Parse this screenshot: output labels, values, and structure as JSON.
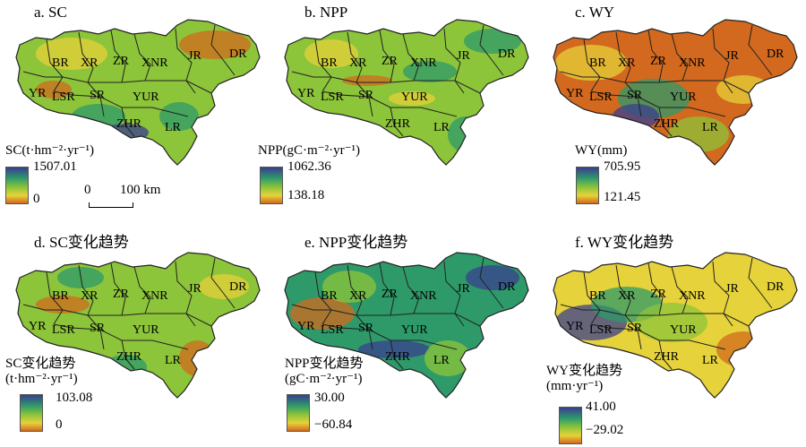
{
  "panels": [
    {
      "id": "a",
      "title": "a. SC",
      "legend": {
        "title_line1": "SC(t·hm⁻²·yr⁻¹)",
        "title_line2": "",
        "max": "1507.01",
        "min": "0"
      }
    },
    {
      "id": "b",
      "title": "b. NPP",
      "legend": {
        "title_line1": "NPP(gC·m⁻²·yr⁻¹)",
        "title_line2": "",
        "max": "1062.36",
        "min": "138.18"
      }
    },
    {
      "id": "c",
      "title": "c. WY",
      "legend": {
        "title_line1": "WY(mm)",
        "title_line2": "",
        "max": "705.95",
        "min": "121.45"
      }
    },
    {
      "id": "d",
      "title": "d. SC变化趋势",
      "legend": {
        "title_line1": "SC变化趋势",
        "title_line2": "(t·hm⁻²·yr⁻¹)",
        "max": "103.08",
        "min": "0"
      }
    },
    {
      "id": "e",
      "title": "e. NPP变化趋势",
      "legend": {
        "title_line1": "NPP变化趋势",
        "title_line2": "(gC·m⁻²·yr⁻¹)",
        "max": "30.00",
        "min": "−60.84"
      }
    },
    {
      "id": "f",
      "title": "f. WY变化趋势",
      "legend": {
        "title_line1": "WY变化趋势",
        "title_line2": "(mm·yr⁻¹)",
        "max": "41.00",
        "min": "−29.02"
      }
    }
  ],
  "regions": [
    "BR",
    "XR",
    "ZR",
    "XNR",
    "JR",
    "DR",
    "YR",
    "LSR",
    "SR",
    "YUR",
    "ZHR",
    "LR"
  ],
  "scalebar": {
    "zero": "0",
    "distance": "100 km"
  },
  "colors": {
    "high": "#3a3f8f",
    "mid_high": "#2e9a6a",
    "mid": "#8cc43a",
    "mid_low": "#e6d23a",
    "low": "#d2691e",
    "boundary": "#222222"
  }
}
